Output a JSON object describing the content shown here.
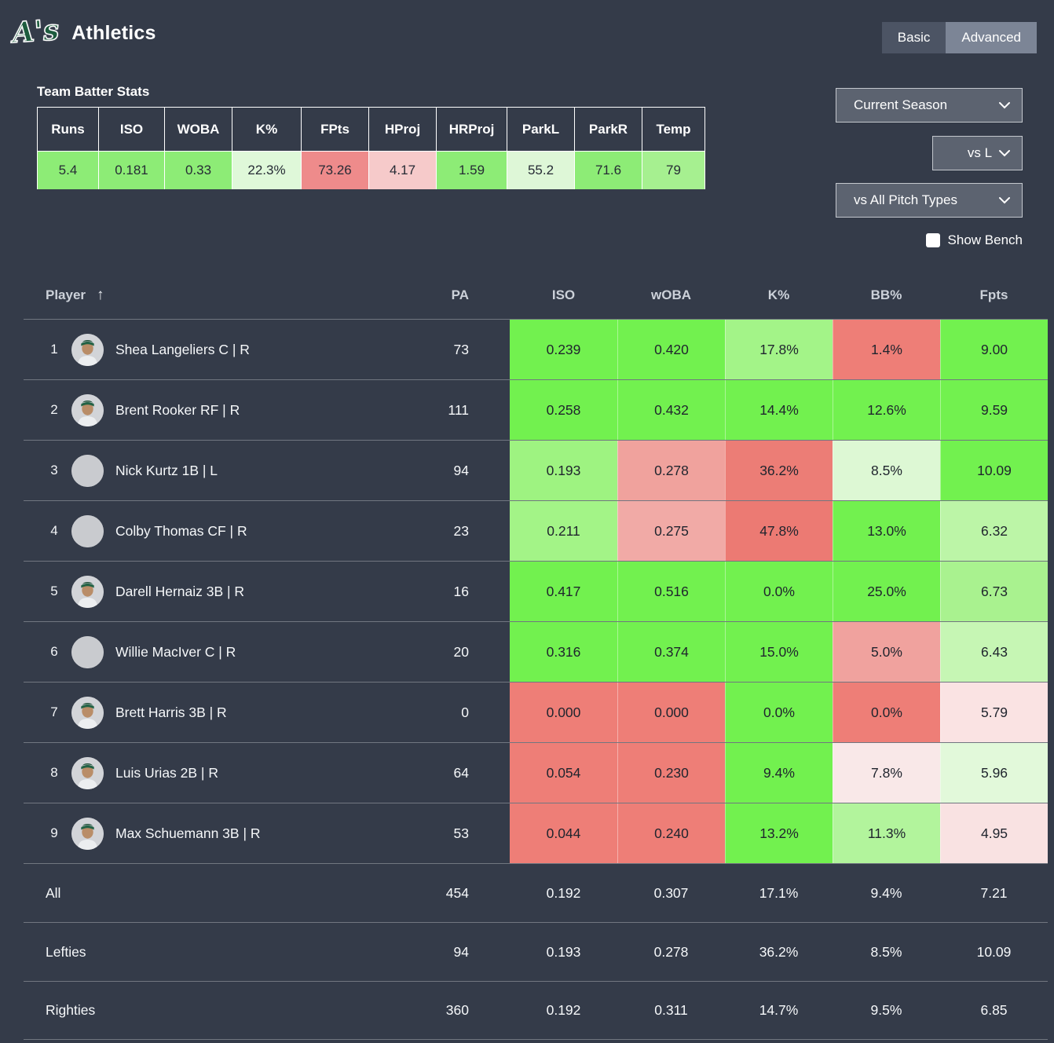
{
  "header": {
    "logo_text": "A's",
    "team_name": "Athletics",
    "view_toggle": {
      "basic_label": "Basic",
      "advanced_label": "Advanced",
      "active": "Advanced"
    }
  },
  "team_stats": {
    "title": "Team Batter Stats",
    "columns": [
      {
        "label": "Runs",
        "value": "5.4",
        "color": "#8dec76"
      },
      {
        "label": "ISO",
        "value": "0.181",
        "color": "#8dec76"
      },
      {
        "label": "WOBA",
        "value": "0.33",
        "color": "#8dec76"
      },
      {
        "label": "K%",
        "value": "22.3%",
        "color": "#dff8d9"
      },
      {
        "label": "FPts",
        "value": "73.26",
        "color": "#ee8b8b"
      },
      {
        "label": "HProj",
        "value": "4.17",
        "color": "#f6caca"
      },
      {
        "label": "HRProj",
        "value": "1.59",
        "color": "#8dec76"
      },
      {
        "label": "ParkL",
        "value": "55.2",
        "color": "#def7d7"
      },
      {
        "label": "ParkR",
        "value": "71.6",
        "color": "#8dec76"
      },
      {
        "label": "Temp",
        "value": "79",
        "color": "#a6f090"
      }
    ]
  },
  "filters": {
    "season": "Current Season",
    "handedness": "vs L",
    "pitch_types": "vs All Pitch Types",
    "show_bench_label": "Show Bench",
    "show_bench_checked": false
  },
  "table": {
    "headers": {
      "player": "Player",
      "sort_icon": "↑",
      "pa": "PA",
      "stats": [
        "ISO",
        "wOBA",
        "K%",
        "BB%",
        "Fpts"
      ]
    },
    "rows": [
      {
        "rank": "1",
        "name": "Shea Langeliers C | R",
        "avatar": "photo",
        "pa": "73",
        "cells": [
          {
            "v": "0.239",
            "c": "#72f14f"
          },
          {
            "v": "0.420",
            "c": "#72f14f"
          },
          {
            "v": "17.8%",
            "c": "#a3f488"
          },
          {
            "v": "1.4%",
            "c": "#ee7e77"
          },
          {
            "v": "9.00",
            "c": "#72f14f"
          }
        ]
      },
      {
        "rank": "2",
        "name": "Brent Rooker RF | R",
        "avatar": "photo",
        "pa": "111",
        "cells": [
          {
            "v": "0.258",
            "c": "#72f14f"
          },
          {
            "v": "0.432",
            "c": "#72f14f"
          },
          {
            "v": "14.4%",
            "c": "#72f14f"
          },
          {
            "v": "12.6%",
            "c": "#72f14f"
          },
          {
            "v": "9.59",
            "c": "#72f14f"
          }
        ]
      },
      {
        "rank": "3",
        "name": "Nick Kurtz 1B | L",
        "avatar": "blank",
        "pa": "94",
        "cells": [
          {
            "v": "0.193",
            "c": "#9ef381"
          },
          {
            "v": "0.278",
            "c": "#f0a29d"
          },
          {
            "v": "36.2%",
            "c": "#ec7d76"
          },
          {
            "v": "8.5%",
            "c": "#ddf8d4"
          },
          {
            "v": "10.09",
            "c": "#72f14f"
          }
        ]
      },
      {
        "rank": "4",
        "name": "Colby Thomas CF | R",
        "avatar": "blank",
        "pa": "23",
        "cells": [
          {
            "v": "0.211",
            "c": "#a3f487"
          },
          {
            "v": "0.275",
            "c": "#f1aaa6"
          },
          {
            "v": "47.8%",
            "c": "#ec7a73"
          },
          {
            "v": "13.0%",
            "c": "#72f14f"
          },
          {
            "v": "6.32",
            "c": "#bcf5a7"
          }
        ]
      },
      {
        "rank": "5",
        "name": "Darell Hernaiz 3B | R",
        "avatar": "photo",
        "pa": "16",
        "cells": [
          {
            "v": "0.417",
            "c": "#72f14f"
          },
          {
            "v": "0.516",
            "c": "#72f14f"
          },
          {
            "v": "0.0%",
            "c": "#72f14f"
          },
          {
            "v": "25.0%",
            "c": "#72f14f"
          },
          {
            "v": "6.73",
            "c": "#a9f28f"
          }
        ]
      },
      {
        "rank": "6",
        "name": "Willie MacIver C | R",
        "avatar": "blank",
        "pa": "20",
        "cells": [
          {
            "v": "0.316",
            "c": "#72f14f"
          },
          {
            "v": "0.374",
            "c": "#72f14f"
          },
          {
            "v": "15.0%",
            "c": "#72f14f"
          },
          {
            "v": "5.0%",
            "c": "#f0a29e"
          },
          {
            "v": "6.43",
            "c": "#c6f6b4"
          }
        ]
      },
      {
        "rank": "7",
        "name": "Brett Harris 3B | R",
        "avatar": "photo",
        "pa": "0",
        "cells": [
          {
            "v": "0.000",
            "c": "#ee7e77"
          },
          {
            "v": "0.000",
            "c": "#ee7e77"
          },
          {
            "v": "0.0%",
            "c": "#72f14f"
          },
          {
            "v": "0.0%",
            "c": "#ee7e77"
          },
          {
            "v": "5.79",
            "c": "#fae3e3"
          }
        ]
      },
      {
        "rank": "8",
        "name": "Luis Urias 2B | R",
        "avatar": "photo",
        "pa": "64",
        "cells": [
          {
            "v": "0.054",
            "c": "#ee7e77"
          },
          {
            "v": "0.230",
            "c": "#ee7e77"
          },
          {
            "v": "9.4%",
            "c": "#72f14f"
          },
          {
            "v": "7.8%",
            "c": "#f9e8e8"
          },
          {
            "v": "5.96",
            "c": "#e2f9da"
          }
        ]
      },
      {
        "rank": "9",
        "name": "Max Schuemann 3B | R",
        "avatar": "photo",
        "pa": "53",
        "cells": [
          {
            "v": "0.044",
            "c": "#ee7e77"
          },
          {
            "v": "0.240",
            "c": "#ee7e77"
          },
          {
            "v": "13.2%",
            "c": "#72f14f"
          },
          {
            "v": "11.3%",
            "c": "#b2f49c"
          },
          {
            "v": "4.95",
            "c": "#f9e2e2"
          }
        ]
      }
    ],
    "summary": [
      {
        "label": "All",
        "pa": "454",
        "values": [
          "0.192",
          "0.307",
          "17.1%",
          "9.4%",
          "7.21"
        ]
      },
      {
        "label": "Lefties",
        "pa": "94",
        "values": [
          "0.193",
          "0.278",
          "36.2%",
          "8.5%",
          "10.09"
        ]
      },
      {
        "label": "Righties",
        "pa": "360",
        "values": [
          "0.192",
          "0.311",
          "14.7%",
          "9.5%",
          "6.85"
        ]
      }
    ]
  },
  "colors": {
    "background": "#343b49",
    "bright_green": "#72f14f",
    "red": "#ee7e77",
    "toggle_active": "#7c8596",
    "toggle_inactive": "#4c5464",
    "select_bg": "#5c6370"
  }
}
